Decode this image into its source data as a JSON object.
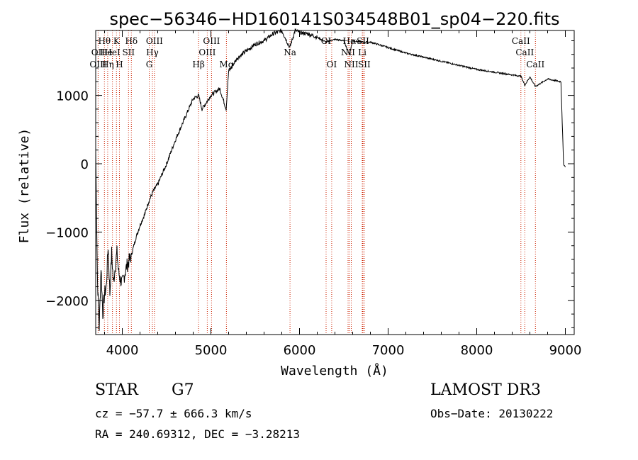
{
  "chart_data": {
    "type": "line",
    "title": "spec−56346−HD160141S034548B01_sp04−220.fits",
    "xlabel": "Wavelength (Å)",
    "ylabel": "Flux (relative)",
    "xlim": [
      3700,
      9100
    ],
    "ylim": [
      -2500,
      1950
    ],
    "xticks": [
      4000,
      5000,
      6000,
      7000,
      8000,
      9000
    ],
    "xtick_labels": [
      "4000",
      "5000",
      "6000",
      "7000",
      "8000",
      "9000"
    ],
    "yticks": [
      -2000,
      -1000,
      0,
      1000
    ],
    "ytick_labels": [
      "−2000",
      "−1000",
      "0",
      "1000"
    ],
    "series": [
      {
        "name": "spectrum",
        "x": [
          3700,
          3720,
          3740,
          3760,
          3780,
          3800,
          3820,
          3840,
          3860,
          3880,
          3900,
          3920,
          3940,
          3960,
          3980,
          4000,
          4050,
          4100,
          4150,
          4200,
          4250,
          4300,
          4350,
          4400,
          4500,
          4600,
          4700,
          4800,
          4861,
          4900,
          5000,
          5100,
          5172,
          5200,
          5300,
          5400,
          5500,
          5600,
          5700,
          5800,
          5890,
          5950,
          6000,
          6100,
          6200,
          6300,
          6400,
          6500,
          6563,
          6600,
          6700,
          6800,
          7000,
          7200,
          7500,
          8000,
          8200,
          8400,
          8500,
          8542,
          8600,
          8662,
          8800,
          8950,
          8980,
          9000
        ],
        "y": [
          200,
          -1700,
          -2400,
          -1500,
          -2200,
          -1900,
          -1800,
          -1200,
          -1900,
          -1300,
          -1750,
          -1500,
          -1300,
          -1600,
          -1700,
          -1750,
          -1500,
          -1350,
          -1100,
          -900,
          -750,
          -550,
          -400,
          -300,
          0,
          350,
          650,
          950,
          1000,
          800,
          1000,
          1100,
          800,
          1350,
          1550,
          1650,
          1750,
          1800,
          1900,
          1950,
          1700,
          1950,
          1920,
          1900,
          1850,
          1780,
          1820,
          1800,
          1600,
          1800,
          1780,
          1780,
          1700,
          1620,
          1530,
          1380,
          1340,
          1300,
          1280,
          1150,
          1270,
          1130,
          1240,
          1200,
          0,
          -50
        ]
      }
    ],
    "annotations": [
      {
        "label": "Hθ",
        "x": 3798,
        "row": 1
      },
      {
        "label": "OII",
        "x": 3727,
        "row": 2
      },
      {
        "label": "OIII",
        "x": 3727,
        "row": 3
      },
      {
        "label": "He",
        "x": 3820,
        "row": 2
      },
      {
        "label": "Hη",
        "x": 3835,
        "row": 3
      },
      {
        "label": "K",
        "x": 3934,
        "row": 1
      },
      {
        "label": "HeI",
        "x": 3889,
        "row": 2
      },
      {
        "label": "H",
        "x": 3968,
        "row": 3
      },
      {
        "label": "Hδ",
        "x": 4102,
        "row": 1
      },
      {
        "label": "SII",
        "x": 4070,
        "row": 2
      },
      {
        "label": "OIII",
        "x": 4363,
        "row": 1
      },
      {
        "label": "Hγ",
        "x": 4340,
        "row": 2
      },
      {
        "label": "G",
        "x": 4304,
        "row": 3
      },
      {
        "label": "Hβ",
        "x": 4861,
        "row": 3
      },
      {
        "label": "OIII",
        "x": 5007,
        "row": 1
      },
      {
        "label": "OIII",
        "x": 4959,
        "row": 2
      },
      {
        "label": "Mg",
        "x": 5175,
        "row": 3
      },
      {
        "label": "Na",
        "x": 5893,
        "row": 2
      },
      {
        "label": "OI",
        "x": 6300,
        "row": 1
      },
      {
        "label": "OI",
        "x": 6363,
        "row": 3
      },
      {
        "label": "Hα",
        "x": 6563,
        "row": 1
      },
      {
        "label": "NII",
        "x": 6548,
        "row": 2
      },
      {
        "label": "NII",
        "x": 6584,
        "row": 3
      },
      {
        "label": "SII",
        "x": 6716,
        "row": 1
      },
      {
        "label": "Li",
        "x": 6708,
        "row": 2
      },
      {
        "label": "SII",
        "x": 6731,
        "row": 3
      },
      {
        "label": "CaII",
        "x": 8498,
        "row": 1
      },
      {
        "label": "CaII",
        "x": 8542,
        "row": 2
      },
      {
        "label": "CaII",
        "x": 8662,
        "row": 3
      }
    ],
    "line_markers": [
      3727,
      3798,
      3835,
      3889,
      3934,
      3968,
      4070,
      4102,
      4304,
      4340,
      4363,
      4861,
      4959,
      5007,
      5175,
      5893,
      6300,
      6363,
      6548,
      6563,
      6584,
      6708,
      6716,
      6731,
      8498,
      8542,
      8662
    ]
  },
  "info": {
    "object_class": "STAR",
    "subclass": "G7",
    "survey": "LAMOST DR3",
    "cz": "cz = −57.7 ± 666.3 km/s",
    "obs_date": "Obs−Date: 20130222",
    "coords": "RA = 240.69312, DEC =  −3.28213"
  },
  "colors": {
    "axis": "#000000",
    "line": "#000000",
    "marker": "#cc2200"
  }
}
